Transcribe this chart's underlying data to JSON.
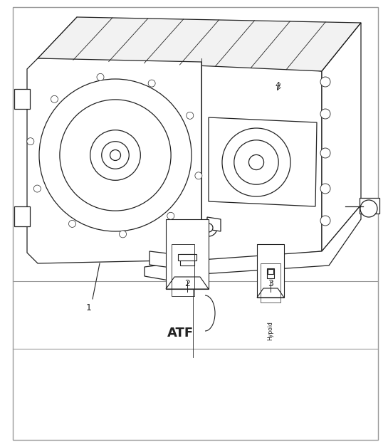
{
  "bg_color": "#ffffff",
  "border_color": "#999999",
  "line_color": "#222222",
  "fig_width": 5.45,
  "fig_height": 6.28,
  "dpi": 100,
  "atf_label": "ATF",
  "hypoid_label": "Hypoid"
}
